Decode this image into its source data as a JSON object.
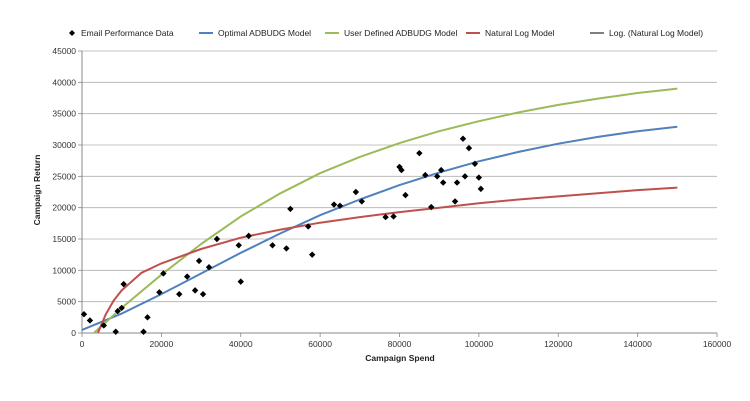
{
  "chart_data": {
    "type": "scatter",
    "title": "",
    "xlabel": "Campaign Spend",
    "ylabel": "Campaign Return",
    "xlim": [
      0,
      160000
    ],
    "ylim": [
      0,
      45000
    ],
    "x_ticks": [
      0,
      20000,
      40000,
      60000,
      80000,
      100000,
      120000,
      140000,
      160000
    ],
    "y_ticks": [
      0,
      5000,
      10000,
      15000,
      20000,
      25000,
      30000,
      35000,
      40000,
      45000
    ],
    "grid": "horizontal",
    "legend_position": "top",
    "legend": [
      {
        "label": "Email Performance Data",
        "kind": "marker",
        "color": "#000000"
      },
      {
        "label": "Optimal ADBUDG Model",
        "kind": "line",
        "color": "#4f81bd"
      },
      {
        "label": "User Defined ADBUDG Model",
        "kind": "line",
        "color": "#9bbb59"
      },
      {
        "label": "Natural Log Model",
        "kind": "line",
        "color": "#c0504d"
      },
      {
        "label": "Log. (Natural Log Model)",
        "kind": "line",
        "color": "#7f7f7f"
      }
    ],
    "scatter_series": {
      "name": "Email Performance Data",
      "color": "#000000",
      "points": [
        [
          500,
          3000
        ],
        [
          2000,
          2000
        ],
        [
          5500,
          1200
        ],
        [
          8500,
          200
        ],
        [
          9000,
          3500
        ],
        [
          10000,
          4000
        ],
        [
          10500,
          7800
        ],
        [
          15500,
          200
        ],
        [
          16500,
          2500
        ],
        [
          19500,
          6500
        ],
        [
          20500,
          9500
        ],
        [
          24500,
          6200
        ],
        [
          26500,
          9000
        ],
        [
          28500,
          6800
        ],
        [
          29500,
          11500
        ],
        [
          30500,
          6200
        ],
        [
          32000,
          10500
        ],
        [
          34000,
          15000
        ],
        [
          39500,
          14000
        ],
        [
          40000,
          8200
        ],
        [
          42000,
          15500
        ],
        [
          48000,
          14000
        ],
        [
          51500,
          13500
        ],
        [
          52500,
          19800
        ],
        [
          57000,
          17000
        ],
        [
          58000,
          12500
        ],
        [
          63500,
          20500
        ],
        [
          65000,
          20300
        ],
        [
          69000,
          22500
        ],
        [
          70500,
          21000
        ],
        [
          76500,
          18500
        ],
        [
          78500,
          18600
        ],
        [
          80000,
          26500
        ],
        [
          80500,
          26000
        ],
        [
          81500,
          22000
        ],
        [
          85000,
          28700
        ],
        [
          86500,
          25200
        ],
        [
          88000,
          20100
        ],
        [
          89500,
          25000
        ],
        [
          90500,
          26000
        ],
        [
          91000,
          24000
        ],
        [
          94000,
          21000
        ],
        [
          94500,
          24000
        ],
        [
          96000,
          31000
        ],
        [
          96500,
          25000
        ],
        [
          97500,
          29500
        ],
        [
          99000,
          27000
        ],
        [
          100000,
          24800
        ],
        [
          100500,
          23000
        ]
      ]
    },
    "line_series": [
      {
        "name": "Optimal ADBUDG Model",
        "color": "#4f81bd",
        "points": [
          [
            0,
            500
          ],
          [
            10000,
            3100
          ],
          [
            20000,
            6200
          ],
          [
            30000,
            9500
          ],
          [
            40000,
            12800
          ],
          [
            50000,
            15900
          ],
          [
            60000,
            18800
          ],
          [
            70000,
            21300
          ],
          [
            80000,
            23600
          ],
          [
            90000,
            25600
          ],
          [
            100000,
            27400
          ],
          [
            110000,
            28900
          ],
          [
            120000,
            30200
          ],
          [
            130000,
            31300
          ],
          [
            140000,
            32200
          ],
          [
            150000,
            32900
          ]
        ]
      },
      {
        "name": "User Defined ADBUDG Model",
        "color": "#9bbb59",
        "points": [
          [
            3000,
            0
          ],
          [
            10000,
            4000
          ],
          [
            20000,
            9300
          ],
          [
            30000,
            14200
          ],
          [
            40000,
            18600
          ],
          [
            50000,
            22300
          ],
          [
            60000,
            25500
          ],
          [
            70000,
            28100
          ],
          [
            80000,
            30300
          ],
          [
            90000,
            32200
          ],
          [
            100000,
            33800
          ],
          [
            110000,
            35200
          ],
          [
            120000,
            36400
          ],
          [
            130000,
            37400
          ],
          [
            140000,
            38300
          ],
          [
            150000,
            39000
          ]
        ]
      },
      {
        "name": "Natural Log Model",
        "color": "#c0504d",
        "points": [
          [
            4000,
            0
          ],
          [
            6000,
            3000
          ],
          [
            8000,
            5200
          ],
          [
            10000,
            6800
          ],
          [
            15000,
            9600
          ],
          [
            20000,
            11100
          ],
          [
            30000,
            13400
          ],
          [
            40000,
            15200
          ],
          [
            50000,
            16500
          ],
          [
            60000,
            17600
          ],
          [
            70000,
            18500
          ],
          [
            80000,
            19300
          ],
          [
            90000,
            20000
          ],
          [
            100000,
            20700
          ],
          [
            110000,
            21300
          ],
          [
            120000,
            21800
          ],
          [
            130000,
            22300
          ],
          [
            140000,
            22800
          ],
          [
            150000,
            23200
          ]
        ]
      }
    ]
  }
}
